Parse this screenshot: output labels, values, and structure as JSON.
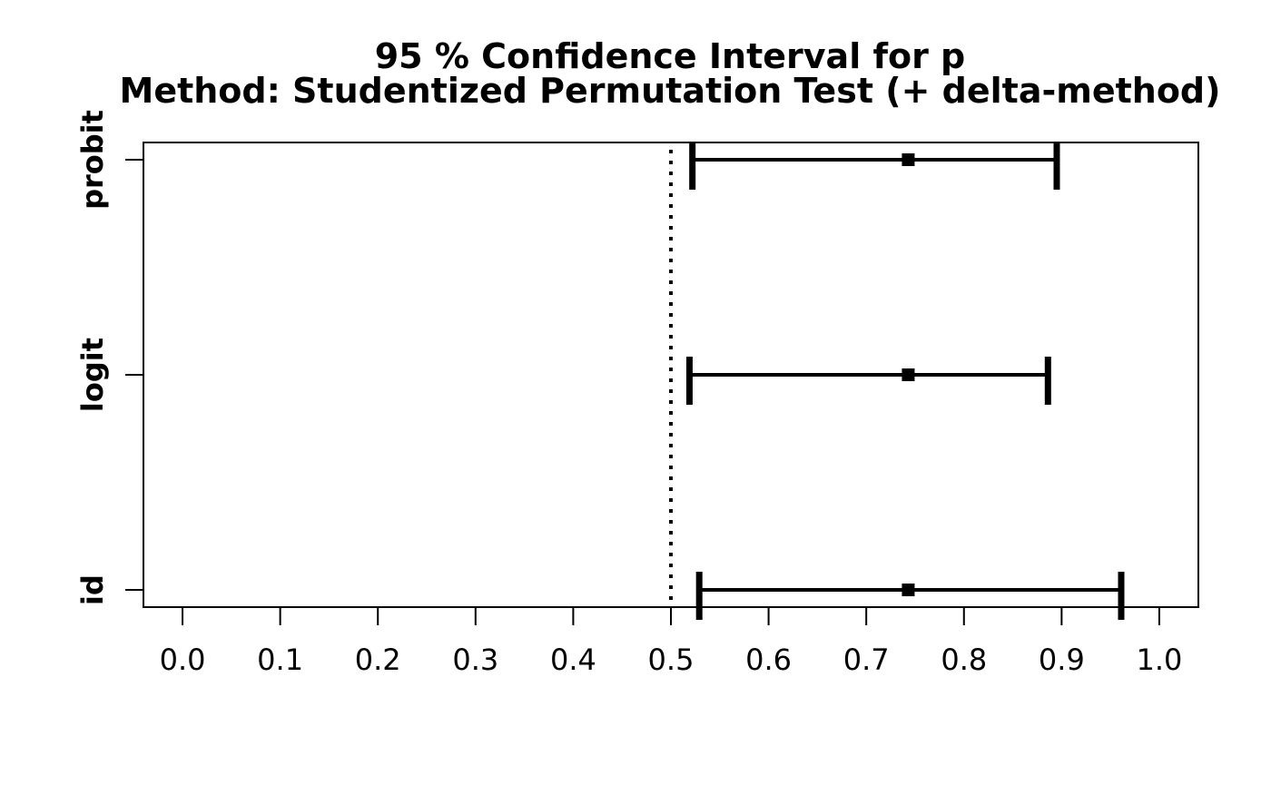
{
  "chart_data": {
    "type": "forest",
    "title": "95 % Confidence Interval for p",
    "subtitle": "Method: Studentized Permutation Test (+ delta-method)",
    "xlim": [
      -0.04,
      1.04
    ],
    "x_ticks": [
      0.0,
      0.1,
      0.2,
      0.3,
      0.4,
      0.5,
      0.6,
      0.7,
      0.8,
      0.9,
      1.0
    ],
    "x_tick_labels": [
      "0.0",
      "0.1",
      "0.2",
      "0.3",
      "0.4",
      "0.5",
      "0.6",
      "0.7",
      "0.8",
      "0.9",
      "1.0"
    ],
    "reference_line": 0.5,
    "categories": [
      "id",
      "logit",
      "probit"
    ],
    "series": [
      {
        "name": "id",
        "estimate": 0.743,
        "lower": 0.529,
        "upper": 0.961
      },
      {
        "name": "logit",
        "estimate": 0.743,
        "lower": 0.519,
        "upper": 0.886
      },
      {
        "name": "probit",
        "estimate": 0.743,
        "lower": 0.522,
        "upper": 0.895
      }
    ],
    "grid": false
  }
}
